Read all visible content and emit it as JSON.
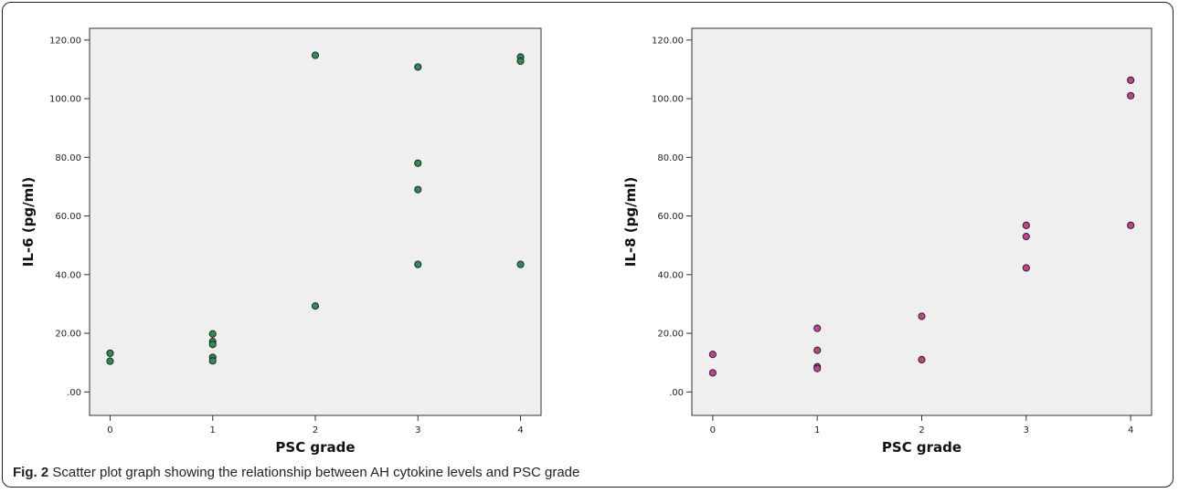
{
  "caption": {
    "label": "Fig. 2",
    "text": "Scatter plot graph showing the relationship between AH cytokine levels and PSC grade"
  },
  "chart_data": [
    {
      "type": "scatter",
      "xlabel": "PSC grade",
      "ylabel": "IL-6 (pg/ml)",
      "x_ticks": [
        "0",
        "1",
        "2",
        "3",
        "4"
      ],
      "y_ticks": [
        ".00",
        "20.00",
        "40.00",
        "60.00",
        "80.00",
        "100.00",
        "120.00"
      ],
      "xlim": [
        -0.2,
        4.2
      ],
      "ylim": [
        -8,
        124
      ],
      "grid": false,
      "point_color": "#2e8b57",
      "series": [
        {
          "x": [
            0,
            0,
            1,
            1,
            1,
            1,
            1,
            2,
            2,
            3,
            3,
            3,
            3,
            4,
            4,
            4
          ],
          "y": [
            13.2,
            10.5,
            19.8,
            17.2,
            16.2,
            11.8,
            10.6,
            114.8,
            29.3,
            110.8,
            78.0,
            69.0,
            43.5,
            114.2,
            112.8,
            43.5
          ]
        }
      ]
    },
    {
      "type": "scatter",
      "xlabel": "PSC grade",
      "ylabel": "IL-8 (pg/ml)",
      "x_ticks": [
        "0",
        "1",
        "2",
        "3",
        "4"
      ],
      "y_ticks": [
        ".00",
        "20.00",
        "40.00",
        "60.00",
        "80.00",
        "100.00",
        "120.00"
      ],
      "xlim": [
        -0.2,
        4.2
      ],
      "ylim": [
        -8,
        124
      ],
      "grid": false,
      "point_color": "#c2428a",
      "series": [
        {
          "x": [
            0,
            0,
            1,
            1,
            1,
            1,
            2,
            2,
            3,
            3,
            3,
            4,
            4,
            4
          ],
          "y": [
            12.8,
            6.5,
            21.7,
            14.2,
            8.6,
            8.0,
            25.8,
            11.0,
            56.8,
            53.0,
            42.3,
            106.3,
            101.0,
            56.8
          ]
        }
      ]
    }
  ]
}
